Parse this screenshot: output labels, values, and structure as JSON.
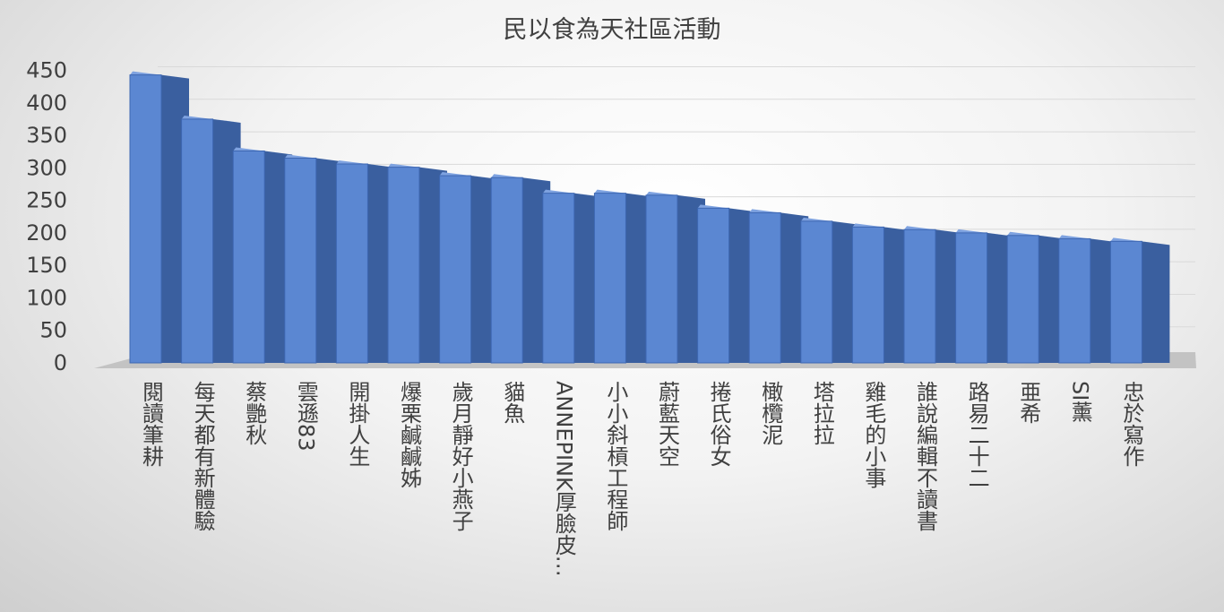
{
  "chart_data": {
    "type": "bar",
    "title": "民以食為天社區活動",
    "xlabel": "",
    "ylabel": "",
    "ylim": [
      0,
      450
    ],
    "yticks": [
      0,
      50,
      100,
      150,
      200,
      250,
      300,
      350,
      400,
      450
    ],
    "grid": true,
    "legend": "none",
    "bar_style": "3d-column",
    "colors": {
      "bar_front": "#5b87d2",
      "bar_front_edge": "#3e67b2",
      "bar_side": "#3a5f9f",
      "bar_top": "#7ea2e0",
      "floor": "#bcbcbc",
      "gridline": "#d9d9d9",
      "text": "#404040"
    },
    "categories": [
      "閱讀筆耕",
      "每天都有新體驗",
      "蔡艷秋",
      "雲遜83",
      "開掛人生",
      "爆栗鹹鹹姊",
      "歲月靜好小燕子",
      "貓魚",
      "ANNEPINK厚臉皮…",
      "小小斜槓工程師",
      "蔚藍天空",
      "捲氏俗女",
      "橄欖泥",
      "塔拉拉",
      "雞毛的小事",
      "誰說編輯不讀書",
      "路易二十二",
      "亜希",
      "SI薰",
      "忠於寫作"
    ],
    "values": [
      443,
      375,
      326,
      315,
      306,
      301,
      288,
      285,
      261,
      261,
      258,
      238,
      231,
      218,
      209,
      205,
      200,
      196,
      191,
      187
    ]
  }
}
